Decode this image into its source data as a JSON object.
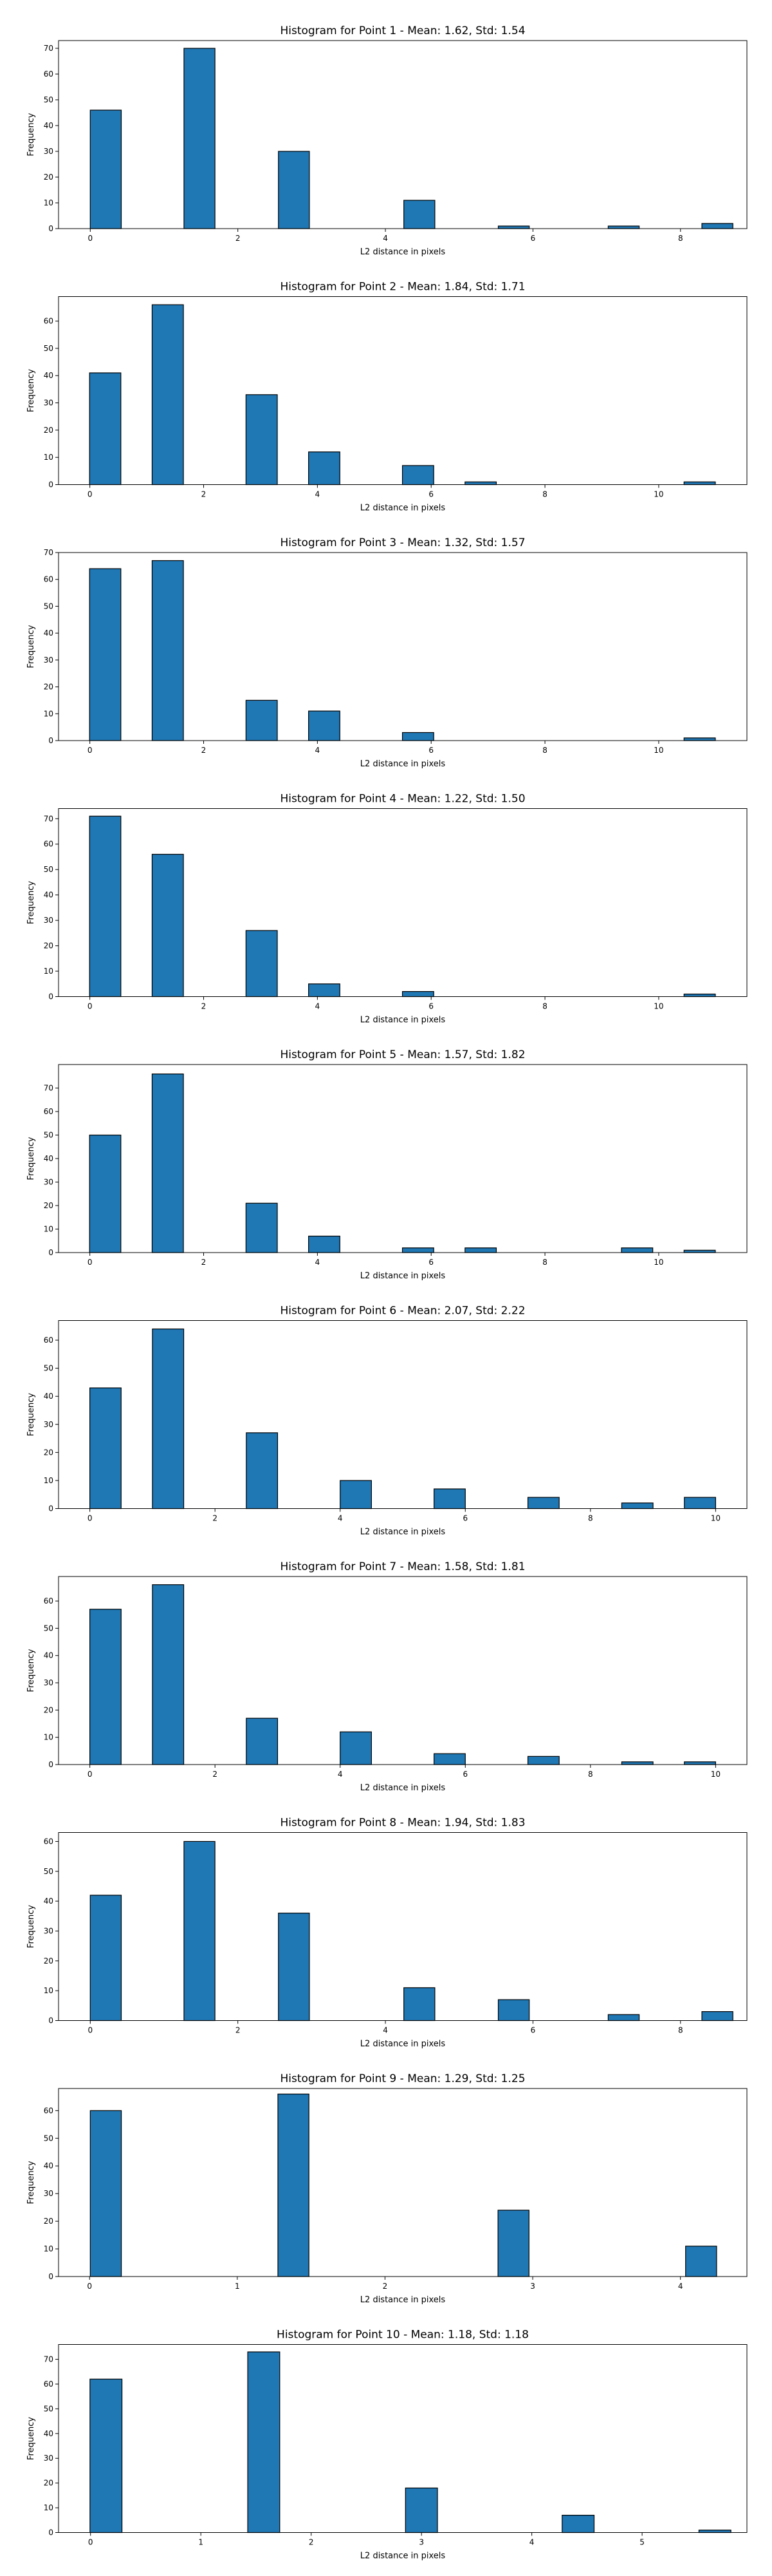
{
  "chart_data": [
    {
      "type": "bar",
      "title": "Histogram for Point 1 - Mean: 1.62, Std: 1.54",
      "xlabel": "L2 distance in pixels",
      "ylabel": "Frequency",
      "xlim": [
        -0.43,
        8.9
      ],
      "ylim": [
        0,
        73
      ],
      "xticks": [
        0,
        2,
        4,
        6,
        8
      ],
      "yticks": [
        0,
        10,
        20,
        30,
        40,
        50,
        60,
        70
      ],
      "bar_width": 0.42,
      "bins": [
        {
          "x": 0.21,
          "value": 46
        },
        {
          "x": 1.48,
          "value": 70
        },
        {
          "x": 2.76,
          "value": 30
        },
        {
          "x": 4.46,
          "value": 11
        },
        {
          "x": 5.74,
          "value": 1
        },
        {
          "x": 7.23,
          "value": 1
        },
        {
          "x": 8.5,
          "value": 2
        }
      ]
    },
    {
      "type": "bar",
      "title": "Histogram for Point 2 - Mean: 1.84, Std: 1.71",
      "xlabel": "L2 distance in pixels",
      "ylabel": "Frequency",
      "xlim": [
        -0.55,
        11.55
      ],
      "ylim": [
        0,
        69
      ],
      "xticks": [
        0,
        2,
        4,
        6,
        8,
        10
      ],
      "yticks": [
        0,
        10,
        20,
        30,
        40,
        50,
        60
      ],
      "bar_width": 0.55,
      "bins": [
        {
          "x": 0.27,
          "value": 41
        },
        {
          "x": 1.37,
          "value": 66
        },
        {
          "x": 3.02,
          "value": 33
        },
        {
          "x": 4.12,
          "value": 12
        },
        {
          "x": 5.77,
          "value": 7
        },
        {
          "x": 6.87,
          "value": 1
        },
        {
          "x": 10.72,
          "value": 1
        }
      ]
    },
    {
      "type": "bar",
      "title": "Histogram for Point 3 - Mean: 1.32, Std: 1.57",
      "xlabel": "L2 distance in pixels",
      "ylabel": "Frequency",
      "xlim": [
        -0.55,
        11.55
      ],
      "ylim": [
        0,
        70
      ],
      "xticks": [
        0,
        2,
        4,
        6,
        8,
        10
      ],
      "yticks": [
        0,
        10,
        20,
        30,
        40,
        50,
        60,
        70
      ],
      "bar_width": 0.55,
      "bins": [
        {
          "x": 0.27,
          "value": 64
        },
        {
          "x": 1.37,
          "value": 67
        },
        {
          "x": 3.02,
          "value": 15
        },
        {
          "x": 4.12,
          "value": 11
        },
        {
          "x": 5.77,
          "value": 3
        },
        {
          "x": 10.72,
          "value": 1
        }
      ]
    },
    {
      "type": "bar",
      "title": "Histogram for Point 4 - Mean: 1.22, Std: 1.50",
      "xlabel": "L2 distance in pixels",
      "ylabel": "Frequency",
      "xlim": [
        -0.55,
        11.55
      ],
      "ylim": [
        0,
        74
      ],
      "xticks": [
        0,
        2,
        4,
        6,
        8,
        10
      ],
      "yticks": [
        0,
        10,
        20,
        30,
        40,
        50,
        60,
        70
      ],
      "bar_width": 0.55,
      "bins": [
        {
          "x": 0.27,
          "value": 71
        },
        {
          "x": 1.37,
          "value": 56
        },
        {
          "x": 3.02,
          "value": 26
        },
        {
          "x": 4.12,
          "value": 5
        },
        {
          "x": 5.77,
          "value": 2
        },
        {
          "x": 10.72,
          "value": 1
        }
      ]
    },
    {
      "type": "bar",
      "title": "Histogram for Point 5 - Mean: 1.57, Std: 1.82",
      "xlabel": "L2 distance in pixels",
      "ylabel": "Frequency",
      "xlim": [
        -0.55,
        11.55
      ],
      "ylim": [
        0,
        80
      ],
      "xticks": [
        0,
        2,
        4,
        6,
        8,
        10
      ],
      "yticks": [
        0,
        10,
        20,
        30,
        40,
        50,
        60,
        70
      ],
      "bar_width": 0.55,
      "bins": [
        {
          "x": 0.27,
          "value": 50
        },
        {
          "x": 1.37,
          "value": 76
        },
        {
          "x": 3.02,
          "value": 21
        },
        {
          "x": 4.12,
          "value": 7
        },
        {
          "x": 5.77,
          "value": 2
        },
        {
          "x": 6.87,
          "value": 2
        },
        {
          "x": 9.62,
          "value": 2
        },
        {
          "x": 10.72,
          "value": 1
        }
      ]
    },
    {
      "type": "bar",
      "title": "Histogram for Point 6 - Mean: 2.07, Std: 2.22",
      "xlabel": "L2 distance in pixels",
      "ylabel": "Frequency",
      "xlim": [
        -0.5,
        10.5
      ],
      "ylim": [
        0,
        67
      ],
      "xticks": [
        0,
        2,
        4,
        6,
        8,
        10
      ],
      "yticks": [
        0,
        10,
        20,
        30,
        40,
        50,
        60
      ],
      "bar_width": 0.5,
      "bins": [
        {
          "x": 0.25,
          "value": 43
        },
        {
          "x": 1.25,
          "value": 64
        },
        {
          "x": 2.75,
          "value": 27
        },
        {
          "x": 4.25,
          "value": 10
        },
        {
          "x": 5.75,
          "value": 7
        },
        {
          "x": 7.25,
          "value": 4
        },
        {
          "x": 8.75,
          "value": 2
        },
        {
          "x": 9.75,
          "value": 4
        }
      ]
    },
    {
      "type": "bar",
      "title": "Histogram for Point 7 - Mean: 1.58, Std: 1.81",
      "xlabel": "L2 distance in pixels",
      "ylabel": "Frequency",
      "xlim": [
        -0.5,
        10.5
      ],
      "ylim": [
        0,
        69
      ],
      "xticks": [
        0,
        2,
        4,
        6,
        8,
        10
      ],
      "yticks": [
        0,
        10,
        20,
        30,
        40,
        50,
        60
      ],
      "bar_width": 0.5,
      "bins": [
        {
          "x": 0.25,
          "value": 57
        },
        {
          "x": 1.25,
          "value": 66
        },
        {
          "x": 2.75,
          "value": 17
        },
        {
          "x": 4.25,
          "value": 12
        },
        {
          "x": 5.75,
          "value": 4
        },
        {
          "x": 7.25,
          "value": 3
        },
        {
          "x": 8.75,
          "value": 1
        },
        {
          "x": 9.75,
          "value": 1
        }
      ]
    },
    {
      "type": "bar",
      "title": "Histogram for Point 8 - Mean: 1.94, Std: 1.83",
      "xlabel": "L2 distance in pixels",
      "ylabel": "Frequency",
      "xlim": [
        -0.43,
        8.9
      ],
      "ylim": [
        0,
        63
      ],
      "xticks": [
        0,
        2,
        4,
        6,
        8
      ],
      "yticks": [
        0,
        10,
        20,
        30,
        40,
        50,
        60
      ],
      "bar_width": 0.42,
      "bins": [
        {
          "x": 0.21,
          "value": 42
        },
        {
          "x": 1.48,
          "value": 60
        },
        {
          "x": 2.76,
          "value": 36
        },
        {
          "x": 4.46,
          "value": 11
        },
        {
          "x": 5.74,
          "value": 7
        },
        {
          "x": 7.23,
          "value": 2
        },
        {
          "x": 8.5,
          "value": 3
        }
      ]
    },
    {
      "type": "bar",
      "title": "Histogram for Point 9 - Mean: 1.29, Std: 1.25",
      "xlabel": "L2 distance in pixels",
      "ylabel": "Frequency",
      "xlim": [
        -0.21,
        4.45
      ],
      "ylim": [
        0,
        68
      ],
      "xticks": [
        0,
        1,
        2,
        3,
        4
      ],
      "yticks": [
        0,
        10,
        20,
        30,
        40,
        50,
        60
      ],
      "bar_width": 0.21,
      "bins": [
        {
          "x": 0.11,
          "value": 60
        },
        {
          "x": 1.38,
          "value": 66
        },
        {
          "x": 2.87,
          "value": 24
        },
        {
          "x": 4.14,
          "value": 11
        }
      ]
    },
    {
      "type": "bar",
      "title": "Histogram for Point 10 - Mean: 1.18, Std: 1.18",
      "xlabel": "L2 distance in pixels",
      "ylabel": "Frequency",
      "xlim": [
        -0.29,
        5.95
      ],
      "ylim": [
        0,
        76
      ],
      "xticks": [
        0,
        1,
        2,
        3,
        4,
        5
      ],
      "yticks": [
        0,
        10,
        20,
        30,
        40,
        50,
        60,
        70
      ],
      "bar_width": 0.29,
      "bins": [
        {
          "x": 0.14,
          "value": 62
        },
        {
          "x": 1.57,
          "value": 73
        },
        {
          "x": 3.0,
          "value": 18
        },
        {
          "x": 4.42,
          "value": 7
        },
        {
          "x": 5.66,
          "value": 1
        }
      ]
    }
  ]
}
